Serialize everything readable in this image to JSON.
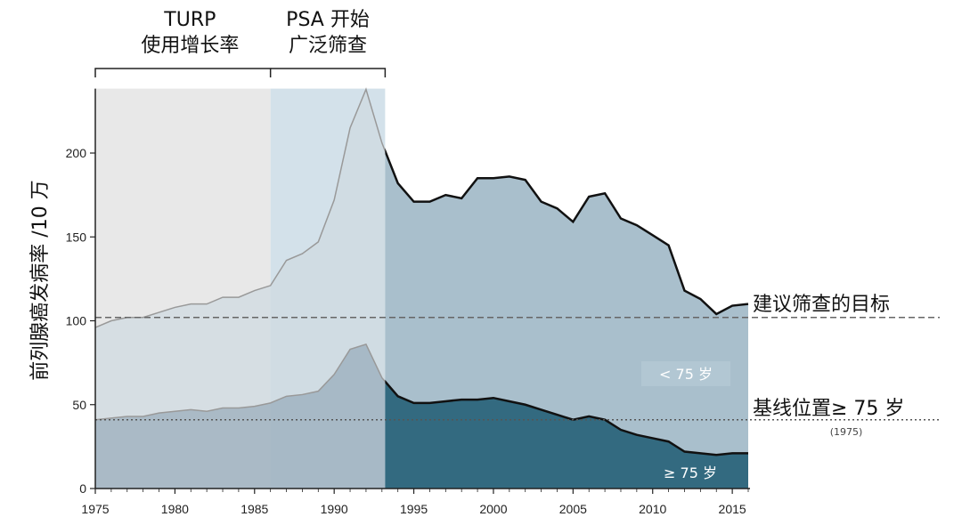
{
  "chart_data": {
    "type": "area",
    "title": "",
    "xlabel": "",
    "ylabel": "前列腺癌发病率 /10 万",
    "xlim": [
      1975,
      2016
    ],
    "ylim": [
      0,
      240
    ],
    "x_ticks": [
      "1975",
      "1980",
      "1985",
      "1990",
      "1995",
      "2000",
      "2005",
      "2010",
      "2015"
    ],
    "y_ticks": [
      "0",
      "50",
      "100",
      "150",
      "200"
    ],
    "grid": false,
    "legend": "none",
    "periods": [
      {
        "label_line1": "TURP",
        "label_line2": "使用增长率",
        "start": 1975,
        "end": 1986,
        "color": "#e8e8e8"
      },
      {
        "label_line1": "PSA 开始",
        "label_line2": "广泛筛查",
        "start": 1986,
        "end": 1993.2,
        "color": "#d3e1ea"
      }
    ],
    "x": [
      1975,
      1976,
      1977,
      1978,
      1979,
      1980,
      1981,
      1982,
      1983,
      1984,
      1985,
      1986,
      1987,
      1988,
      1989,
      1990,
      1991,
      1992,
      1993,
      1994,
      1995,
      1996,
      1997,
      1998,
      1999,
      2000,
      2001,
      2002,
      2003,
      2004,
      2005,
      2006,
      2007,
      2008,
      2009,
      2010,
      2011,
      2012,
      2013,
      2014,
      2015,
      2016
    ],
    "series": [
      {
        "name": "< 75 岁",
        "values": [
          96,
          100,
          102,
          102,
          105,
          108,
          110,
          110,
          114,
          114,
          118,
          121,
          136,
          140,
          147,
          172,
          215,
          238,
          206,
          182,
          171,
          171,
          175,
          173,
          185,
          185,
          186,
          184,
          171,
          167,
          159,
          174,
          176,
          161,
          157,
          151,
          145,
          118,
          113,
          104,
          109,
          110
        ]
      },
      {
        "name": "≥ 75 岁",
        "values": [
          41,
          42,
          43,
          43,
          45,
          46,
          47,
          46,
          48,
          48,
          49,
          51,
          55,
          56,
          58,
          68,
          83,
          86,
          66,
          55,
          51,
          51,
          52,
          53,
          53,
          54,
          52,
          50,
          47,
          44,
          41,
          43,
          41,
          35,
          32,
          30,
          28,
          22,
          21,
          20,
          21,
          21
        ]
      }
    ],
    "reference_lines": [
      {
        "label": "建议筛查的目标",
        "value": 102,
        "style": "dashed"
      },
      {
        "label": "基线位置≥ 75 岁",
        "note": "(1975)",
        "value": 41,
        "style": "dotted"
      }
    ],
    "colors": {
      "upper_area": "#a9bfcc",
      "upper_area_early": "#ced9e0",
      "lower_area": "#336a80",
      "lower_area_early": "#9fb2bf",
      "line": "#111111",
      "line_early": "#999999"
    }
  },
  "labels": {
    "under75": "< 75 岁",
    "over75": "≥ 75 岁"
  }
}
